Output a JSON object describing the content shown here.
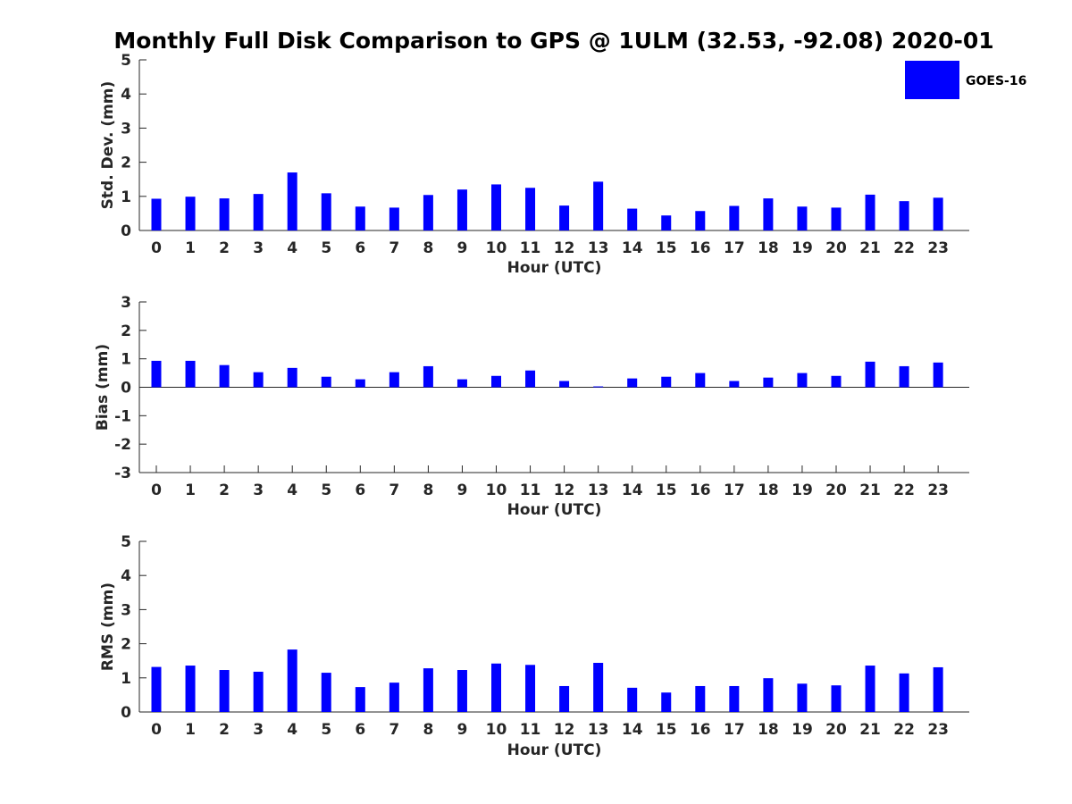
{
  "figure": {
    "title": "Monthly Full Disk Comparison to GPS @ 1ULM (32.53, -92.08) 2020-01",
    "legend": {
      "label": "GOES-16",
      "color": "#0000ff",
      "placement": "top-right"
    }
  },
  "chart_data": [
    {
      "type": "bar",
      "xlabel": "Hour (UTC)",
      "ylabel": "Std. Dev. (mm)",
      "ylim": [
        0,
        5
      ],
      "yticks": [
        0,
        1,
        2,
        3,
        4,
        5
      ],
      "categories": [
        "0",
        "1",
        "2",
        "3",
        "4",
        "5",
        "6",
        "7",
        "8",
        "9",
        "10",
        "11",
        "12",
        "13",
        "14",
        "15",
        "16",
        "17",
        "18",
        "19",
        "20",
        "21",
        "22",
        "23"
      ],
      "series": [
        {
          "name": "GOES-16",
          "color": "#0000ff",
          "values": [
            0.93,
            0.99,
            0.94,
            1.07,
            1.7,
            1.09,
            0.7,
            0.67,
            1.04,
            1.2,
            1.35,
            1.25,
            0.73,
            1.43,
            0.64,
            0.44,
            0.57,
            0.72,
            0.94,
            0.7,
            0.67,
            1.05,
            0.86,
            0.96
          ]
        }
      ]
    },
    {
      "type": "bar",
      "xlabel": "Hour (UTC)",
      "ylabel": "Bias (mm)",
      "ylim": [
        -3,
        3
      ],
      "yticks": [
        -3,
        -2,
        -1,
        0,
        1,
        2,
        3
      ],
      "categories": [
        "0",
        "1",
        "2",
        "3",
        "4",
        "5",
        "6",
        "7",
        "8",
        "9",
        "10",
        "11",
        "12",
        "13",
        "14",
        "15",
        "16",
        "17",
        "18",
        "19",
        "20",
        "21",
        "22",
        "23"
      ],
      "series": [
        {
          "name": "GOES-16",
          "color": "#0000ff",
          "values": [
            0.93,
            0.93,
            0.78,
            0.53,
            0.68,
            0.37,
            0.28,
            0.53,
            0.74,
            0.28,
            0.4,
            0.59,
            0.22,
            0.03,
            0.31,
            0.37,
            0.5,
            0.22,
            0.34,
            0.5,
            0.4,
            0.9,
            0.74,
            0.87
          ]
        }
      ]
    },
    {
      "type": "bar",
      "xlabel": "Hour (UTC)",
      "ylabel": "RMS (mm)",
      "ylim": [
        0,
        5
      ],
      "yticks": [
        0,
        1,
        2,
        3,
        4,
        5
      ],
      "categories": [
        "0",
        "1",
        "2",
        "3",
        "4",
        "5",
        "6",
        "7",
        "8",
        "9",
        "10",
        "11",
        "12",
        "13",
        "14",
        "15",
        "16",
        "17",
        "18",
        "19",
        "20",
        "21",
        "22",
        "23"
      ],
      "series": [
        {
          "name": "GOES-16",
          "color": "#0000ff",
          "values": [
            1.32,
            1.36,
            1.23,
            1.18,
            1.83,
            1.15,
            0.73,
            0.86,
            1.28,
            1.23,
            1.42,
            1.38,
            0.76,
            1.44,
            0.71,
            0.57,
            0.76,
            0.76,
            0.99,
            0.83,
            0.78,
            1.36,
            1.13,
            1.31
          ]
        }
      ]
    }
  ]
}
